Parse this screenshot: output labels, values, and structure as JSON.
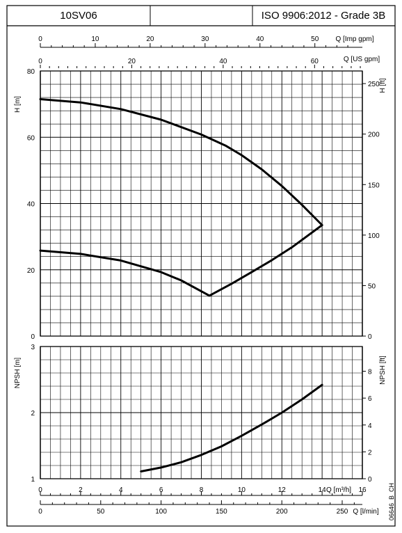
{
  "header": {
    "model": "10SV06",
    "standard": "ISO 9906:2012 - Grade 3B"
  },
  "chart_data": [
    {
      "type": "line",
      "panel": "head",
      "ylabel_left": "H [m]",
      "ylabel_right": "H [ft]",
      "ylim": [
        0,
        80
      ],
      "yticks": [
        0,
        20,
        40,
        60,
        80
      ],
      "ylim_right": [
        0,
        262.5
      ],
      "yticks_right": [
        0,
        50,
        100,
        150,
        200,
        250
      ],
      "top_axis_1": {
        "label": "Q [Imp gpm]",
        "ticks": [
          0,
          10,
          20,
          30,
          40,
          50
        ],
        "max": 58.65
      },
      "top_axis_2": {
        "label": "Q [US gpm]",
        "ticks": [
          0,
          20,
          40,
          60
        ],
        "max": 70.45
      },
      "x_unit_note": "Q [m³/h] 0-16",
      "grid": true,
      "series": [
        {
          "x": [
            0,
            2,
            4,
            6,
            8,
            9.2,
            10,
            11,
            12,
            13,
            14
          ],
          "y": [
            71.5,
            70.5,
            68.5,
            65.3,
            60.8,
            57.5,
            54.6,
            50.3,
            45.3,
            39.6,
            33.5
          ]
        },
        {
          "x": [
            0,
            2,
            4,
            6,
            7,
            8.4,
            9.5,
            10.5,
            11.5,
            12.5,
            14
          ],
          "y": [
            25.8,
            24.8,
            22.8,
            19.3,
            16.8,
            12.2,
            15.8,
            19.3,
            22.9,
            26.8,
            33.5
          ]
        }
      ]
    },
    {
      "type": "line",
      "panel": "npsh",
      "ylabel_left": "NPSH [m]",
      "ylabel_right": "NPSH [ft]",
      "ylim": [
        1,
        3
      ],
      "yticks": [
        1,
        2,
        3
      ],
      "ylim_right": [
        0,
        9.84
      ],
      "yticks_right": [
        0,
        2,
        4,
        6,
        8
      ],
      "xlabel": "Q [m³/h]",
      "xticks": [
        0,
        2,
        4,
        6,
        8,
        10,
        12,
        14
      ],
      "xlim": [
        0,
        16
      ],
      "bottom_axis_2": {
        "label": "Q [l/min]",
        "ticks": [
          0,
          50,
          100,
          150,
          200,
          250
        ],
        "max": 266.7
      },
      "grid": true,
      "series": [
        {
          "x": [
            5,
            6,
            7,
            8,
            9,
            10,
            11,
            12,
            13,
            14
          ],
          "y": [
            1.11,
            1.17,
            1.25,
            1.36,
            1.49,
            1.65,
            1.82,
            2.0,
            2.2,
            2.42
          ]
        }
      ]
    }
  ],
  "footer": {
    "code": "06646_B_CH"
  }
}
